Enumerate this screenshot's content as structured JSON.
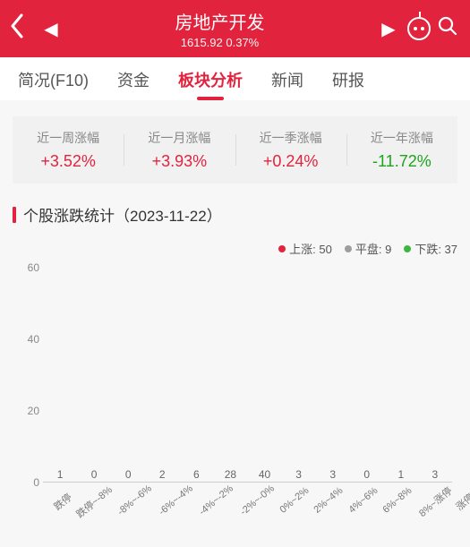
{
  "header": {
    "title": "房地产开发",
    "index_value": "1615.92",
    "index_change": "0.37%"
  },
  "tabs": {
    "items": [
      {
        "label": "简况(F10)",
        "active": false
      },
      {
        "label": "资金",
        "active": false
      },
      {
        "label": "板块分析",
        "active": true
      },
      {
        "label": "新闻",
        "active": false
      },
      {
        "label": "研报",
        "active": false
      }
    ]
  },
  "periods": [
    {
      "label": "近一周涨幅",
      "value": "+3.52%",
      "dir": "up"
    },
    {
      "label": "近一月涨幅",
      "value": "+3.93%",
      "dir": "up"
    },
    {
      "label": "近一季涨幅",
      "value": "+0.24%",
      "dir": "up"
    },
    {
      "label": "近一年涨幅",
      "value": "-11.72%",
      "dir": "down"
    }
  ],
  "section": {
    "title": "个股涨跌统计（2023-11-22）"
  },
  "legend": [
    {
      "label": "上涨: 50",
      "color": "#e2233e"
    },
    {
      "label": "平盘: 9",
      "color": "#9e9e9e"
    },
    {
      "label": "下跌: 37",
      "color": "#3fb53f"
    }
  ],
  "chart": {
    "type": "bar",
    "ylim": [
      0,
      60
    ],
    "yticks": [
      0,
      20,
      40,
      60
    ],
    "label_fontsize": 12,
    "axis_color": "#cccccc",
    "background_color": "#f7f7f7",
    "bar_width": 0.6,
    "categories": [
      "跌停",
      "跌停~-8%",
      "-8%~-6%",
      "-6%~-4%",
      "-4%~-2%",
      "-2%~-0%",
      "0%~2%",
      "2%~4%",
      "4%~6%",
      "6%~8%",
      "8%~涨停",
      "涨停"
    ],
    "values": [
      1,
      0,
      0,
      2,
      6,
      28,
      40,
      3,
      3,
      0,
      1,
      3
    ],
    "bar_colors": [
      "#3fb53f",
      "#3fb53f",
      "#3fb53f",
      "#3fb53f",
      "#3fb53f",
      "#3fb53f",
      "#e2233e",
      "#e2233e",
      "#e2233e",
      "#e2233e",
      "#e2233e",
      "#e2233e"
    ]
  }
}
